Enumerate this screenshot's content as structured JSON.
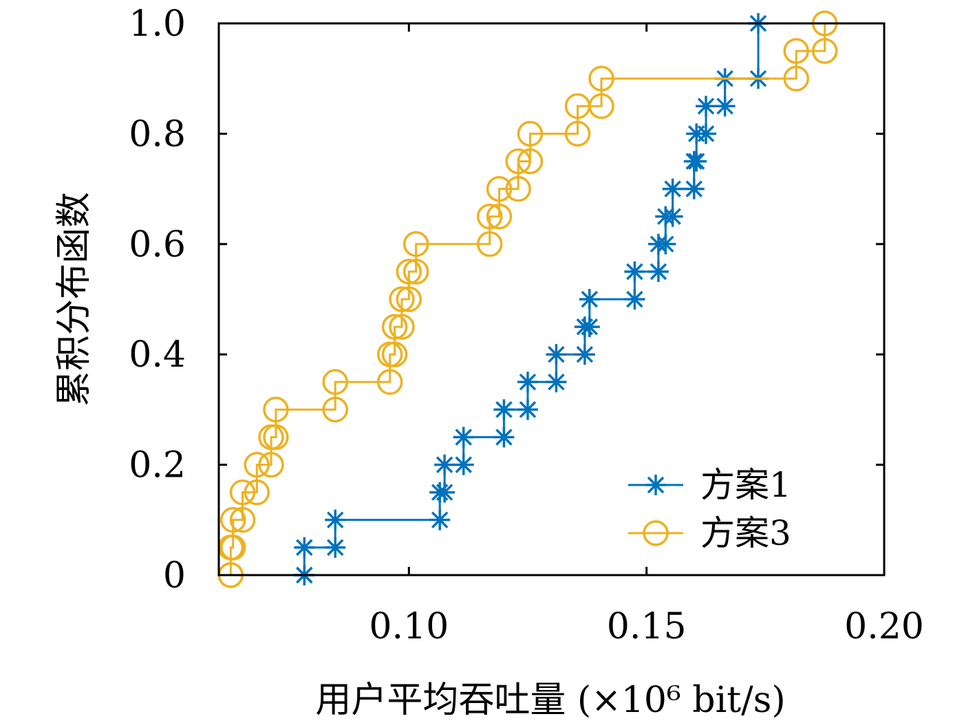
{
  "chart_data": {
    "type": "line",
    "step": true,
    "title": "",
    "xlabel": "用户平均吞吐量 (×10⁶ bit/s)",
    "ylabel": "累积分布函数",
    "xlim": [
      0.06,
      0.2
    ],
    "ylim": [
      0,
      1.0
    ],
    "xticks": [
      0.1,
      0.15,
      0.2
    ],
    "xtick_labels": [
      "0.10",
      "0.15",
      "0.20"
    ],
    "yticks": [
      0,
      0.2,
      0.4,
      0.6,
      0.8,
      1.0
    ],
    "ytick_labels": [
      "0",
      "0.2",
      "0.4",
      "0.6",
      "0.8",
      "1.0"
    ],
    "grid": false,
    "legend_position": "bottom-right",
    "series": [
      {
        "name": "方案1",
        "color": "#0072BD",
        "marker": "asterisk",
        "x": [
          0.078,
          0.0845,
          0.1065,
          0.1075,
          0.1115,
          0.12,
          0.125,
          0.131,
          0.137,
          0.138,
          0.1475,
          0.1525,
          0.154,
          0.1555,
          0.16,
          0.1605,
          0.1625,
          0.1665,
          0.1735
        ],
        "y": [
          0.05,
          0.1,
          0.15,
          0.2,
          0.25,
          0.3,
          0.35,
          0.4,
          0.45,
          0.5,
          0.55,
          0.6,
          0.65,
          0.7,
          0.75,
          0.8,
          0.85,
          0.9,
          1.0
        ]
      },
      {
        "name": "方案3",
        "color": "#EDB120",
        "marker": "circle",
        "x": [
          0.0625,
          0.063,
          0.065,
          0.068,
          0.071,
          0.072,
          0.0845,
          0.096,
          0.097,
          0.0985,
          0.1,
          0.1015,
          0.117,
          0.119,
          0.123,
          0.1255,
          0.1355,
          0.1405,
          0.1815,
          0.1875
        ],
        "y": [
          0.05,
          0.1,
          0.15,
          0.2,
          0.25,
          0.3,
          0.35,
          0.4,
          0.45,
          0.5,
          0.55,
          0.6,
          0.65,
          0.7,
          0.75,
          0.8,
          0.85,
          0.9,
          0.95,
          1.0
        ]
      }
    ]
  }
}
